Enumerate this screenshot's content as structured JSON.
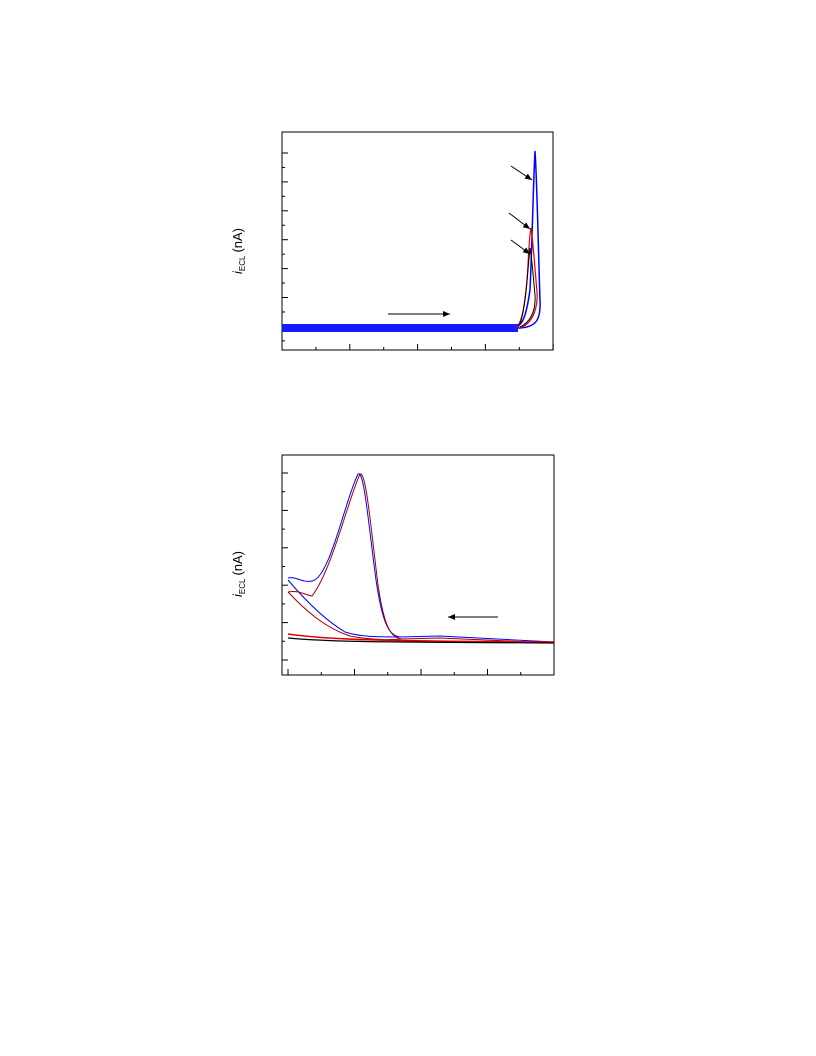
{
  "figures": [
    {
      "y_label": {
        "symbol": "i",
        "subscript": "ECL",
        "unit": "(nA)"
      }
    },
    {
      "y_label": {
        "symbol": "i",
        "subscript": "ECL",
        "unit": "(nA)"
      }
    }
  ]
}
